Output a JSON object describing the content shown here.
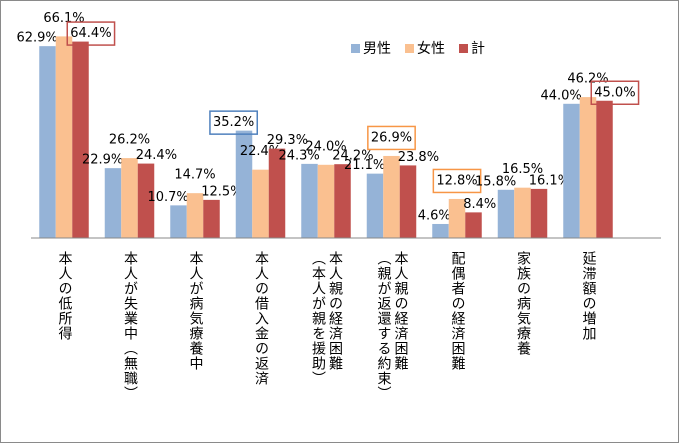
{
  "chart_data": {
    "type": "bar",
    "categories": [
      "本人の低所得",
      "本人が失業中（無職）",
      "本人が病気療養中",
      "本人の借入金の返済",
      "本人親の経済困難\n（本人が親を援助）",
      "本人親の経済困難\n（親が返還する約束）",
      "配偶者の経済困難",
      "家族の病気療養",
      "延滞額の増加"
    ],
    "series": [
      {
        "name": "男性",
        "color": "#95b3d7",
        "values": [
          62.9,
          22.9,
          10.7,
          35.2,
          24.3,
          21.1,
          4.6,
          15.8,
          44.0
        ],
        "value_labels": [
          "62.9%",
          "22.9%",
          "10.7%",
          "35.2%",
          "24.3%",
          "21.1%",
          "4.6%",
          "15.8%",
          "44.0%"
        ]
      },
      {
        "name": "女性",
        "color": "#fac090",
        "values": [
          66.1,
          26.2,
          14.7,
          22.4,
          24.0,
          26.9,
          12.8,
          16.5,
          46.2
        ],
        "value_labels": [
          "66.1%",
          "26.2%",
          "14.7%",
          "22.4%",
          "24.0%",
          "26.9%",
          "12.8%",
          "16.5%",
          "46.2%"
        ]
      },
      {
        "name": "計",
        "color": "#c0504d",
        "values": [
          64.4,
          24.4,
          12.5,
          29.3,
          24.2,
          23.8,
          8.4,
          16.1,
          45.0
        ],
        "value_labels": [
          "64.4%",
          "24.4%",
          "12.5%",
          "29.3%",
          "24.2%",
          "23.8%",
          "8.4%",
          "16.1%",
          "45.0%"
        ]
      }
    ],
    "legend": "top-right"
  }
}
